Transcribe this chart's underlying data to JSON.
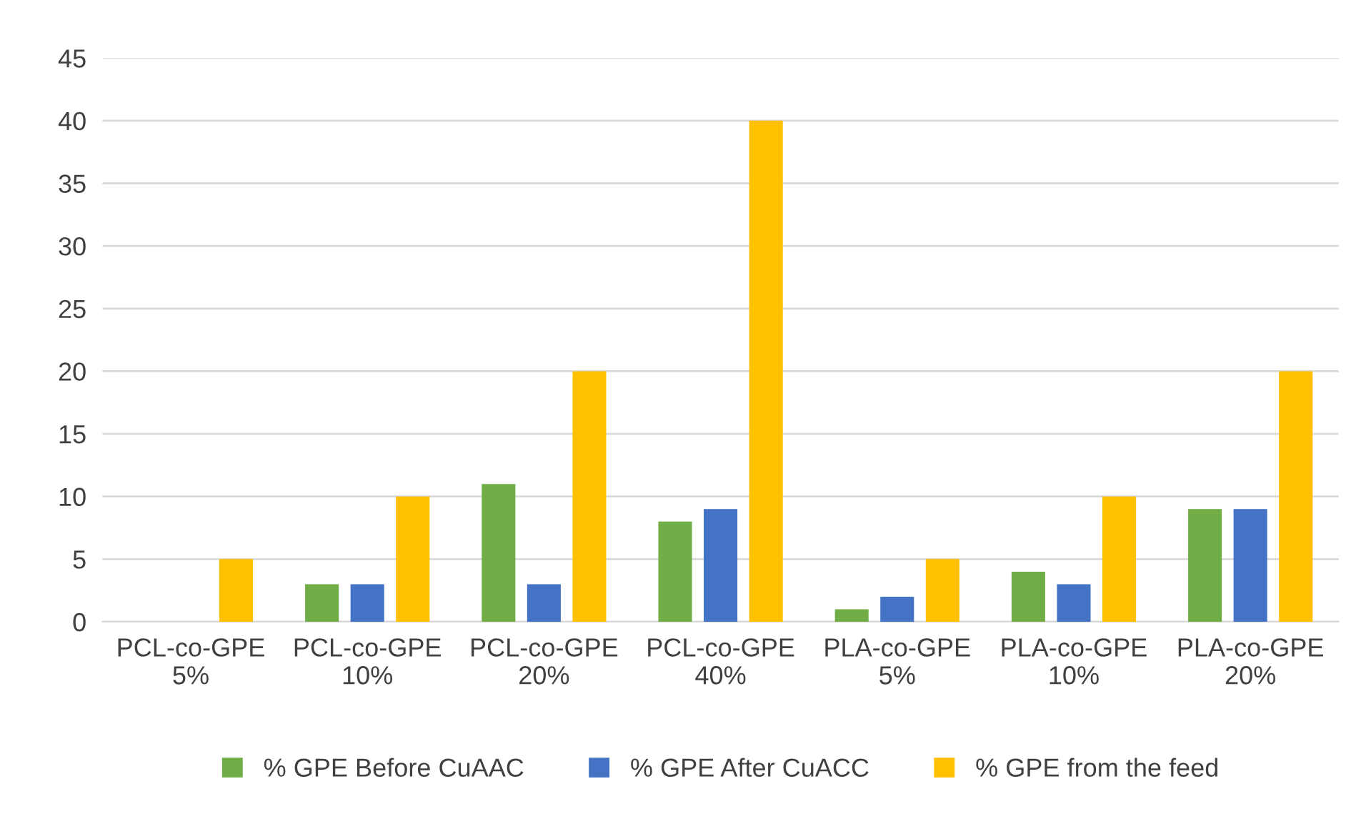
{
  "chart_data": {
    "type": "bar",
    "categories": [
      "PCL-co-GPE\n5%",
      "PCL-co-GPE\n10%",
      "PCL-co-GPE\n20%",
      "PCL-co-GPE\n40%",
      "PLA-co-GPE\n5%",
      "PLA-co-GPE\n10%",
      "PLA-co-GPE\n20%"
    ],
    "series": [
      {
        "name": "% GPE Before CuAAC",
        "color": "#70ad47",
        "values": [
          0,
          3,
          11,
          8,
          1,
          4,
          9
        ]
      },
      {
        "name": "% GPE After CuACC",
        "color": "#4472c4",
        "values": [
          0,
          3,
          3,
          9,
          2,
          3,
          9
        ]
      },
      {
        "name": "% GPE from the feed",
        "color": "#ffc000",
        "values": [
          5,
          10,
          20,
          40,
          5,
          10,
          20
        ]
      }
    ],
    "ylim": [
      0,
      45
    ],
    "yticks": [
      0,
      5,
      10,
      15,
      20,
      25,
      30,
      35,
      40,
      45
    ],
    "grid": "y",
    "legend": "bottom"
  }
}
